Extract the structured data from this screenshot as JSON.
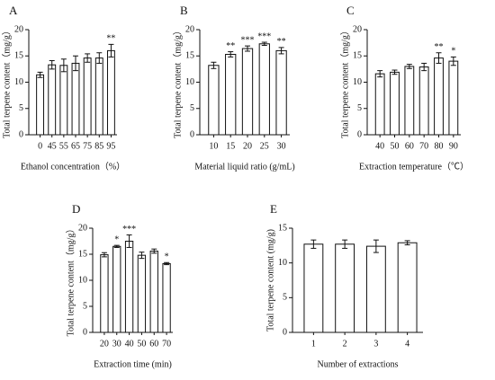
{
  "chart_data": [
    {
      "type": "bar",
      "panel": "A",
      "ylabel": "Total terpene content（mg/g）",
      "xlabel": "Ethanol concentration（%）",
      "categories": [
        "0",
        "45",
        "55",
        "65",
        "75",
        "85",
        "95"
      ],
      "values": [
        11.4,
        13.3,
        13.2,
        13.6,
        14.6,
        14.6,
        16.0
      ],
      "errors": [
        0.5,
        0.8,
        1.2,
        1.4,
        0.8,
        1.0,
        1.2
      ],
      "ylim": [
        0,
        20
      ],
      "yticks": [
        0,
        5,
        10,
        15,
        20
      ],
      "color": "#ffffff",
      "annotations": [
        {
          "index": 6,
          "text": "**"
        }
      ]
    },
    {
      "type": "bar",
      "panel": "B",
      "ylabel": "Total terpene content（mg/g）",
      "xlabel": "Material liquid ratio (g/mL)",
      "categories": [
        "10",
        "15",
        "20",
        "25",
        "30"
      ],
      "values": [
        13.2,
        15.3,
        16.4,
        17.3,
        16.0
      ],
      "errors": [
        0.6,
        0.5,
        0.5,
        0.3,
        0.6
      ],
      "ylim": [
        0,
        20
      ],
      "yticks": [
        0,
        5,
        10,
        15,
        20
      ],
      "color": "#ffffff",
      "annotations": [
        {
          "index": 1,
          "text": "**"
        },
        {
          "index": 2,
          "text": "***"
        },
        {
          "index": 3,
          "text": "***"
        },
        {
          "index": 4,
          "text": "**"
        }
      ]
    },
    {
      "type": "bar",
      "panel": "C",
      "ylabel": "Total terpene content（mg/g）",
      "xlabel": "Extraction temperature（℃）",
      "categories": [
        "40",
        "50",
        "60",
        "70",
        "80",
        "90"
      ],
      "values": [
        11.6,
        11.9,
        13.0,
        12.9,
        14.6,
        14.0
      ],
      "errors": [
        0.6,
        0.4,
        0.4,
        0.7,
        1.0,
        0.8
      ],
      "ylim": [
        0,
        20
      ],
      "yticks": [
        0,
        5,
        10,
        15,
        20
      ],
      "color": "#ffffff",
      "annotations": [
        {
          "index": 4,
          "text": "**"
        },
        {
          "index": 5,
          "text": "*"
        }
      ]
    },
    {
      "type": "bar",
      "panel": "D",
      "ylabel": "Total terpene content（mg/g）",
      "xlabel": "Extraction time (min)",
      "categories": [
        "20",
        "30",
        "40",
        "50",
        "60",
        "70"
      ],
      "values": [
        14.9,
        16.5,
        17.5,
        14.8,
        15.6,
        13.2
      ],
      "errors": [
        0.4,
        0.2,
        1.2,
        0.6,
        0.4,
        0.2
      ],
      "ylim": [
        0,
        20
      ],
      "yticks": [
        0,
        5,
        10,
        15,
        20
      ],
      "color": "#ffffff",
      "annotations": [
        {
          "index": 1,
          "text": "*"
        },
        {
          "index": 2,
          "text": "***"
        },
        {
          "index": 5,
          "text": "*"
        }
      ]
    },
    {
      "type": "bar",
      "panel": "E",
      "ylabel": "Total terpene content (mg/g)",
      "xlabel": "Number of extractions",
      "categories": [
        "1",
        "2",
        "3",
        "4"
      ],
      "values": [
        12.7,
        12.7,
        12.4,
        12.9
      ],
      "errors": [
        0.6,
        0.6,
        0.9,
        0.3
      ],
      "ylim": [
        0,
        15
      ],
      "yticks": [
        0,
        5,
        10,
        15
      ],
      "color": "#ffffff",
      "annotations": []
    }
  ]
}
